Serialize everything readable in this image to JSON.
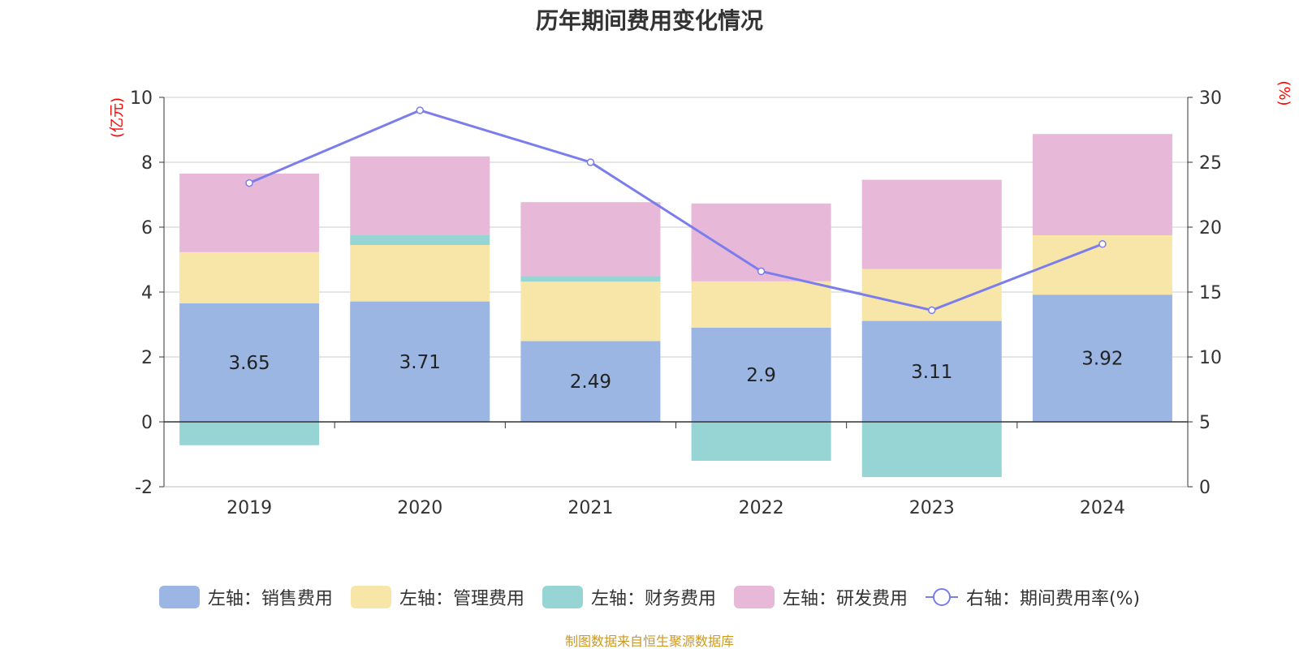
{
  "title": "历年期间费用变化情况",
  "source": "制图数据来自恒生聚源数据库",
  "chart_data": {
    "type": "bar",
    "stacked": true,
    "title": "历年期间费用变化情况",
    "categories": [
      "2019",
      "2020",
      "2021",
      "2022",
      "2023",
      "2024"
    ],
    "left_axis": {
      "unit": "(亿元)",
      "ylim": [
        -2,
        10
      ],
      "ticks": [
        -2,
        0,
        2,
        4,
        6,
        8,
        10
      ]
    },
    "right_axis": {
      "unit": "(%)",
      "ylim": [
        0,
        30
      ],
      "ticks": [
        0,
        5,
        10,
        15,
        20,
        25,
        30
      ]
    },
    "series": [
      {
        "name": "左轴：销售费用",
        "type": "bar",
        "axis": "left",
        "color": "#9bb6e2",
        "values": [
          3.65,
          3.71,
          2.49,
          2.9,
          3.11,
          3.92
        ],
        "show_labels": true
      },
      {
        "name": "左轴：管理费用",
        "type": "bar",
        "axis": "left",
        "color": "#f8e6a8",
        "values": [
          1.58,
          1.74,
          1.83,
          1.43,
          1.6,
          1.83
        ]
      },
      {
        "name": "左轴：财务费用",
        "type": "bar",
        "axis": "left",
        "color": "#97d4d4",
        "values": [
          -0.72,
          0.32,
          0.17,
          -1.2,
          -1.7,
          0.02
        ]
      },
      {
        "name": "左轴：研发费用",
        "type": "bar",
        "axis": "left",
        "color": "#e7b8d8",
        "values": [
          2.42,
          2.41,
          2.28,
          2.4,
          2.75,
          3.1
        ]
      },
      {
        "name": "右轴：期间费用率(%)",
        "type": "line",
        "axis": "right",
        "color": "#7b7ded",
        "values": [
          23.4,
          29.0,
          25.0,
          16.6,
          13.6,
          18.7
        ]
      }
    ],
    "grid": true,
    "legend": "bottom"
  }
}
